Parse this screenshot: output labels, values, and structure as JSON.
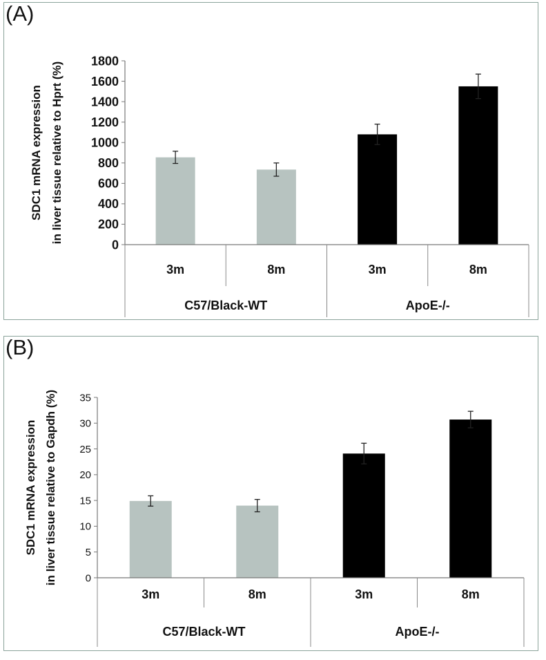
{
  "chart_data": [
    {
      "panel_label": "(A)",
      "type": "bar",
      "title": "",
      "ylabel_lines": [
        "SDC1 mRNA expression",
        "in liver tissue relative to Hprt  (%)"
      ],
      "xlabel": "",
      "ylim": [
        0,
        1800
      ],
      "yticks": [
        0,
        200,
        400,
        600,
        800,
        1000,
        1200,
        1400,
        1600,
        1800
      ],
      "categories": [
        "3m",
        "8m",
        "3m",
        "8m"
      ],
      "groups": [
        {
          "name": "C57/Black-WT",
          "span": 2
        },
        {
          "name": "ApoE-/-",
          "span": 2
        }
      ],
      "values": [
        855,
        735,
        1080,
        1550
      ],
      "errors": [
        60,
        65,
        100,
        120
      ],
      "bar_colors": [
        "#b7c3c0",
        "#b7c3c0",
        "#000000",
        "#000000"
      ],
      "grid": false
    },
    {
      "panel_label": "(B)",
      "type": "bar",
      "title": "",
      "ylabel_lines": [
        "SDC1 mRNA expression",
        "in liver tissue relative to Gapdh (%)"
      ],
      "xlabel": "",
      "ylim": [
        0,
        35
      ],
      "yticks": [
        0,
        5,
        10,
        15,
        20,
        25,
        30,
        35
      ],
      "categories": [
        "3m",
        "8m",
        "3m",
        "8m"
      ],
      "groups": [
        {
          "name": "C57/Black-WT",
          "span": 2
        },
        {
          "name": "ApoE-/-",
          "span": 2
        }
      ],
      "values": [
        14.9,
        14.0,
        24.1,
        30.7
      ],
      "errors": [
        1.0,
        1.2,
        2.0,
        1.6
      ],
      "bar_colors": [
        "#b7c3c0",
        "#b7c3c0",
        "#000000",
        "#000000"
      ],
      "grid": false
    }
  ]
}
